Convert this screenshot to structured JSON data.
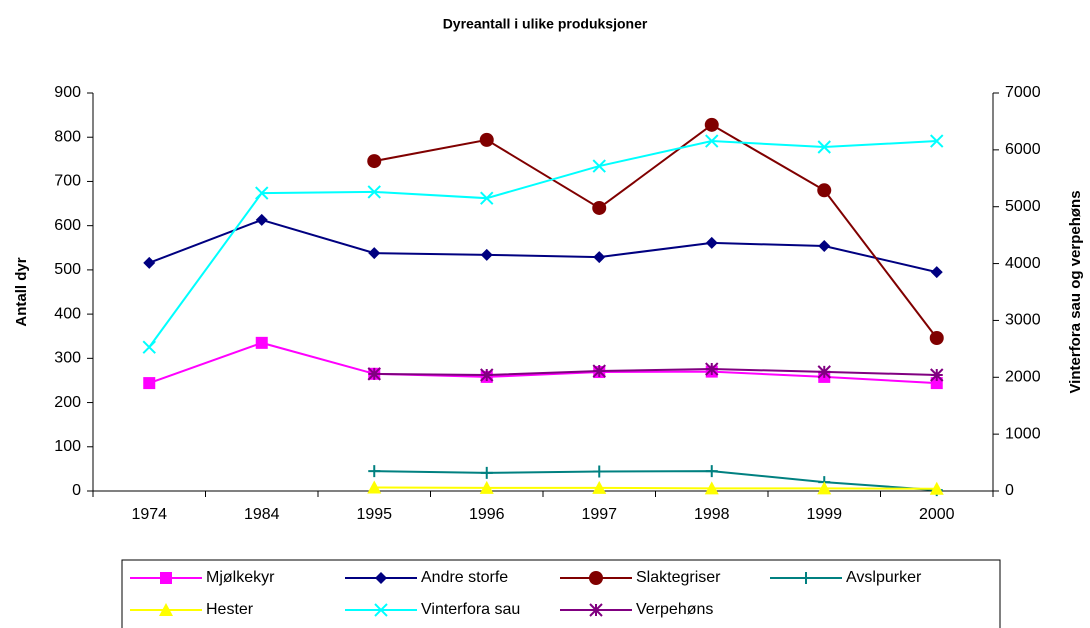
{
  "chart_data": {
    "type": "line",
    "title": "Dyreantall i ulike produksjoner",
    "y_label": "Antall dyr",
    "y2_label": "Vinterfora sau og verpehøns",
    "categories": [
      "1974",
      "1984",
      "1995",
      "1996",
      "1997",
      "1998",
      "1999",
      "2000"
    ],
    "ylim": [
      0,
      900
    ],
    "yticks": [
      0,
      100,
      200,
      300,
      400,
      500,
      600,
      700,
      800,
      900
    ],
    "y2lim": [
      0,
      7000
    ],
    "y2ticks": [
      0,
      1000,
      2000,
      3000,
      4000,
      5000,
      6000,
      7000
    ],
    "grid": false,
    "series": [
      {
        "name": "Mjølkekyr",
        "color": "#ff00ff",
        "marker": "square",
        "values": [
          244,
          335,
          265,
          258,
          269,
          270,
          258,
          244
        ]
      },
      {
        "name": "Andre storfe",
        "color": "#000080",
        "marker": "diamond",
        "values": [
          516,
          613,
          538,
          534,
          529,
          561,
          554,
          495
        ]
      },
      {
        "name": "Slaktegriser",
        "color": "#800000",
        "marker": "circle",
        "values": [
          null,
          null,
          746,
          794,
          640,
          828,
          680,
          346
        ]
      },
      {
        "name": "Avslpurker",
        "color": "#008080",
        "marker": "plus",
        "values": [
          null,
          null,
          45,
          41,
          44,
          45,
          20,
          2
        ]
      },
      {
        "name": "Hester",
        "color": "#ffff00",
        "marker": "triangle",
        "values": [
          null,
          null,
          8,
          7,
          7,
          6,
          6,
          5
        ]
      },
      {
        "name": "Vinterfora sau",
        "color": "#00ffff",
        "marker": "x",
        "axis": "y2",
        "values": [
          2530,
          5240,
          5260,
          5150,
          5715,
          6155,
          6050,
          6155
        ]
      },
      {
        "name": "Verpehøns",
        "color": "#800080",
        "marker": "star",
        "axis": "y2",
        "values": [
          null,
          null,
          2060,
          2040,
          2110,
          2145,
          2095,
          2040
        ]
      }
    ]
  }
}
